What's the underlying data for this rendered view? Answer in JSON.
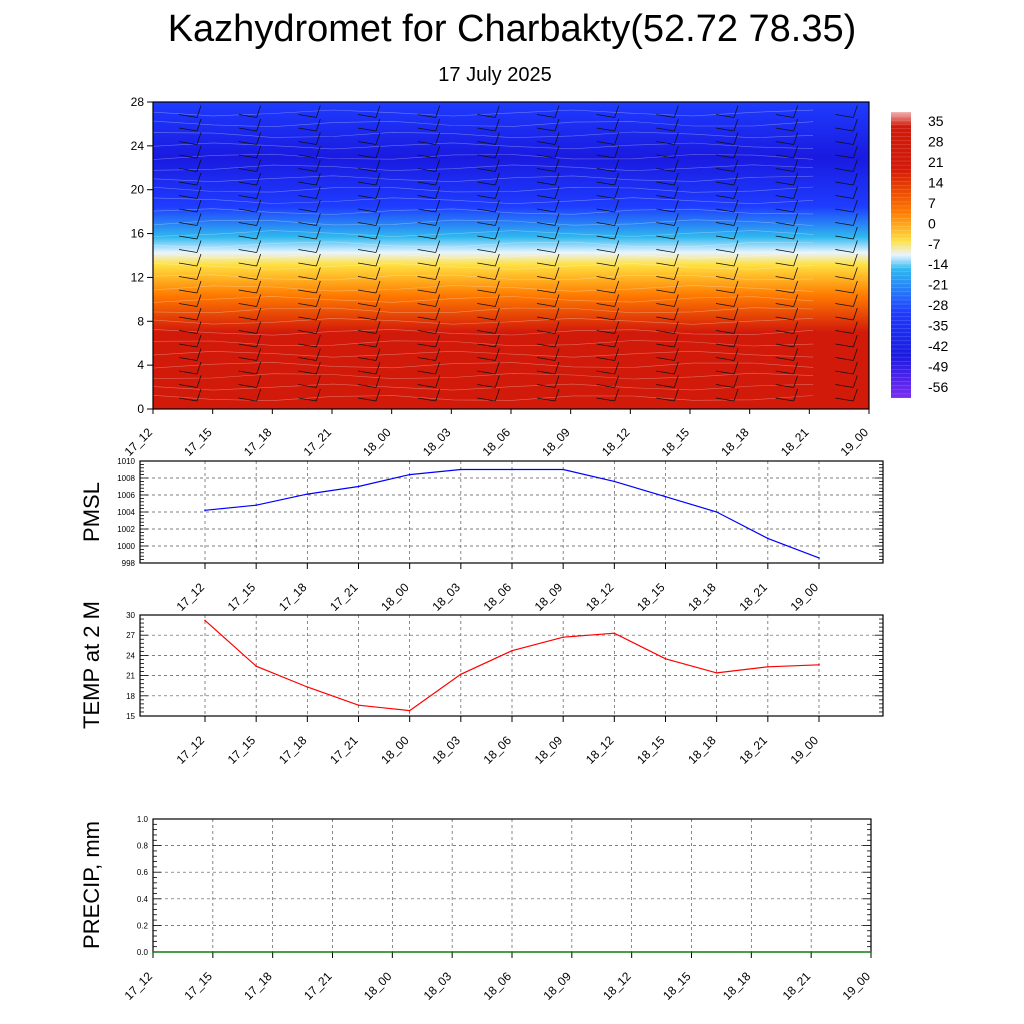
{
  "title": "Kazhydromet for Charbakty(52.72 78.35)",
  "subtitle": "17 July 2025",
  "chart_data": [
    {
      "type": "heatmap",
      "x_tick_labels": [
        "17_12",
        "17_15",
        "17_18",
        "17_21",
        "18_00",
        "18_03",
        "18_06",
        "18_09",
        "18_12",
        "18_15",
        "18_18",
        "18_21",
        "19_00"
      ],
      "y_ticks": [
        0,
        4,
        8,
        12,
        16,
        20,
        24,
        28
      ],
      "ylim": [
        0,
        28
      ],
      "colorbar_labels": [
        "35",
        "28",
        "21",
        "14",
        "7",
        "0",
        "-7",
        "-14",
        "-21",
        "-28",
        "-35",
        "-42",
        "-49",
        "-56"
      ],
      "colors": {
        "hot": "#d21a0a",
        "warm": "#ff7a00",
        "yellow": "#ffe040",
        "light": "#e8f4ff",
        "cyan": "#30b8ef",
        "blue": "#1e3cff",
        "deep": "#1a1ae0",
        "violet": "#7a2ef0"
      }
    },
    {
      "type": "line",
      "ylabel": "PMSL",
      "x": [
        "17_12",
        "17_15",
        "17_18",
        "17_21",
        "18_00",
        "18_03",
        "18_06",
        "18_09",
        "18_12",
        "18_15",
        "18_18",
        "18_21",
        "19_00"
      ],
      "values": [
        1004.2,
        1004.8,
        1006.1,
        1007.0,
        1008.4,
        1009.0,
        1009.0,
        1009.0,
        1007.6,
        1005.8,
        1004.0,
        1000.9,
        998.6
      ],
      "ylim": [
        998,
        1010
      ],
      "y_ticks": [
        998,
        1000,
        1002,
        1004,
        1006,
        1008,
        1010
      ],
      "grid": true,
      "color": "#0000ff"
    },
    {
      "type": "line",
      "ylabel": "TEMP at 2 M",
      "x": [
        "17_12",
        "17_15",
        "17_18",
        "17_21",
        "18_00",
        "18_03",
        "18_06",
        "18_09",
        "18_12",
        "18_15",
        "18_18",
        "18_21",
        "19_00"
      ],
      "values": [
        29.2,
        22.4,
        19.3,
        16.6,
        15.8,
        21.2,
        24.7,
        26.7,
        27.3,
        23.5,
        21.4,
        22.3,
        22.6
      ],
      "ylim": [
        15,
        30
      ],
      "y_ticks": [
        15,
        18,
        21,
        24,
        27,
        30
      ],
      "grid": true,
      "color": "#ff0000"
    },
    {
      "type": "line",
      "ylabel": "PRECIP, mm",
      "x": [
        "17_12",
        "17_15",
        "17_18",
        "17_21",
        "18_00",
        "18_03",
        "18_06",
        "18_09",
        "18_12",
        "18_15",
        "18_18",
        "18_21",
        "19_00"
      ],
      "values": [
        0,
        0,
        0,
        0,
        0,
        0,
        0,
        0,
        0,
        0,
        0,
        0,
        0
      ],
      "ylim": [
        0,
        1
      ],
      "y_ticks": [
        "0.0",
        "0.2",
        "0.4",
        "0.6",
        "0.8",
        "1.0"
      ],
      "grid": true,
      "color": "#008000"
    }
  ]
}
